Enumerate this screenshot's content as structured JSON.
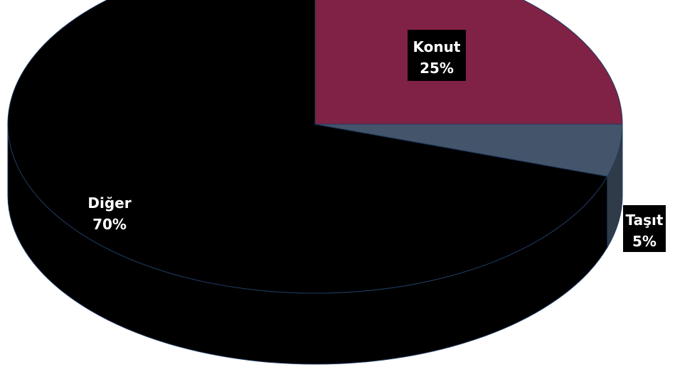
{
  "chart_data": {
    "type": "pie",
    "style": "3d",
    "title": "",
    "legend": "none",
    "slices": [
      {
        "label": "Konut",
        "value": 25,
        "value_label": "25%",
        "color": "#7f2245",
        "label_bg": "#000000",
        "label_color": "#ffffff"
      },
      {
        "label": "Taşıt",
        "value": 5,
        "value_label": "5%",
        "color": "#44546a",
        "label_bg": "#000000",
        "label_color": "#ffffff"
      },
      {
        "label": "Diğer",
        "value": 70,
        "value_label": "70%",
        "color": "#000000",
        "label_bg": "",
        "label_color": "#ffffff"
      }
    ]
  }
}
